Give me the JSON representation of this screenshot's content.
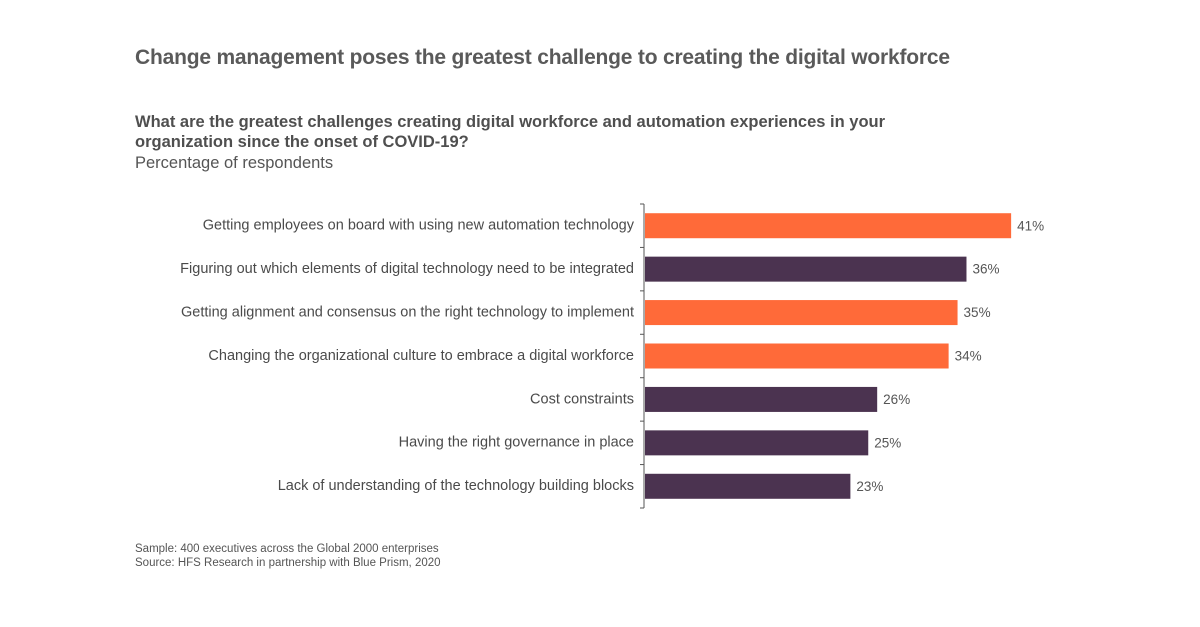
{
  "header": {
    "title": "Change management poses the greatest challenge to creating the digital workforce",
    "question": "What are the greatest challenges creating digital workforce and automation experiences in your organization since the onset of COVID-19?",
    "subtitle": "Percentage of respondents"
  },
  "footer": {
    "sample": "Sample: 400 executives across the Global 2000 enterprises",
    "source": "Source: HFS Research in partnership with Blue Prism, 2020"
  },
  "colors": {
    "highlight": "#ff6a39",
    "default": "#4b3350",
    "axis": "#555555"
  },
  "chart_data": {
    "type": "bar",
    "orientation": "horizontal",
    "title": "What are the greatest challenges creating digital workforce and automation experiences in your organization since the onset of COVID-19?",
    "subtitle": "Percentage of respondents",
    "categories": [
      "Getting employees on board with using new automation technology",
      "Figuring out which elements of digital technology need to be integrated",
      "Getting alignment and consensus on the right technology to implement",
      "Changing the organizational culture to embrace a digital workforce",
      "Cost constraints",
      "Having the right governance in place",
      "Lack of understanding of the technology building blocks"
    ],
    "values": [
      41,
      36,
      35,
      34,
      26,
      25,
      23
    ],
    "value_labels": [
      "41%",
      "36%",
      "35%",
      "34%",
      "26%",
      "25%",
      "23%"
    ],
    "highlighted": [
      true,
      false,
      true,
      true,
      false,
      false,
      false
    ],
    "unit": "%",
    "xlim": [
      0,
      50
    ],
    "grid": false,
    "legend": "none"
  }
}
